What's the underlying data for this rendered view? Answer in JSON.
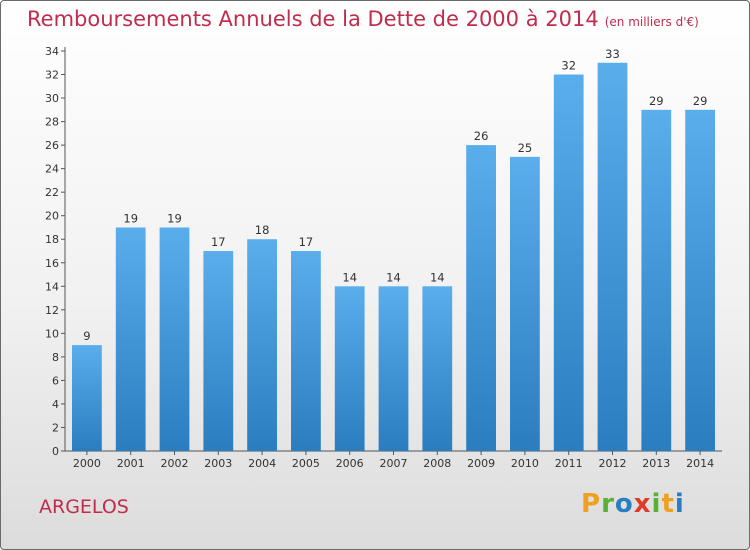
{
  "header": {
    "title": "Remboursements Annuels de la Dette de 2000 à 2014",
    "unit": "(en milliers d'€)"
  },
  "footer": {
    "commune": "ARGELOS",
    "logo_letters": [
      "P",
      "r",
      "o",
      "x",
      "i",
      "t",
      "i"
    ]
  },
  "colors": {
    "title": "#c22c4c",
    "bar_top": "#5aaeec",
    "bar_bottom": "#2a7dbf",
    "logo": [
      "#f0a020",
      "#59b032",
      "#2a7dbf",
      "#e03a2a",
      "#59b032",
      "#f0a020",
      "#2a7dbf"
    ]
  },
  "chart_data": {
    "type": "bar",
    "title": "Remboursements Annuels de la Dette de 2000 à 2014",
    "categories": [
      "2000",
      "2001",
      "2002",
      "2003",
      "2004",
      "2005",
      "2006",
      "2007",
      "2008",
      "2009",
      "2010",
      "2011",
      "2012",
      "2013",
      "2014"
    ],
    "values": [
      9,
      19,
      19,
      17,
      18,
      17,
      14,
      14,
      14,
      26,
      25,
      32,
      33,
      29,
      29
    ],
    "ylim": [
      0,
      34
    ],
    "yticks": [
      0,
      2,
      4,
      6,
      8,
      10,
      12,
      14,
      16,
      18,
      20,
      22,
      24,
      26,
      28,
      30,
      32,
      34
    ],
    "grid": false,
    "data_labels": true
  }
}
